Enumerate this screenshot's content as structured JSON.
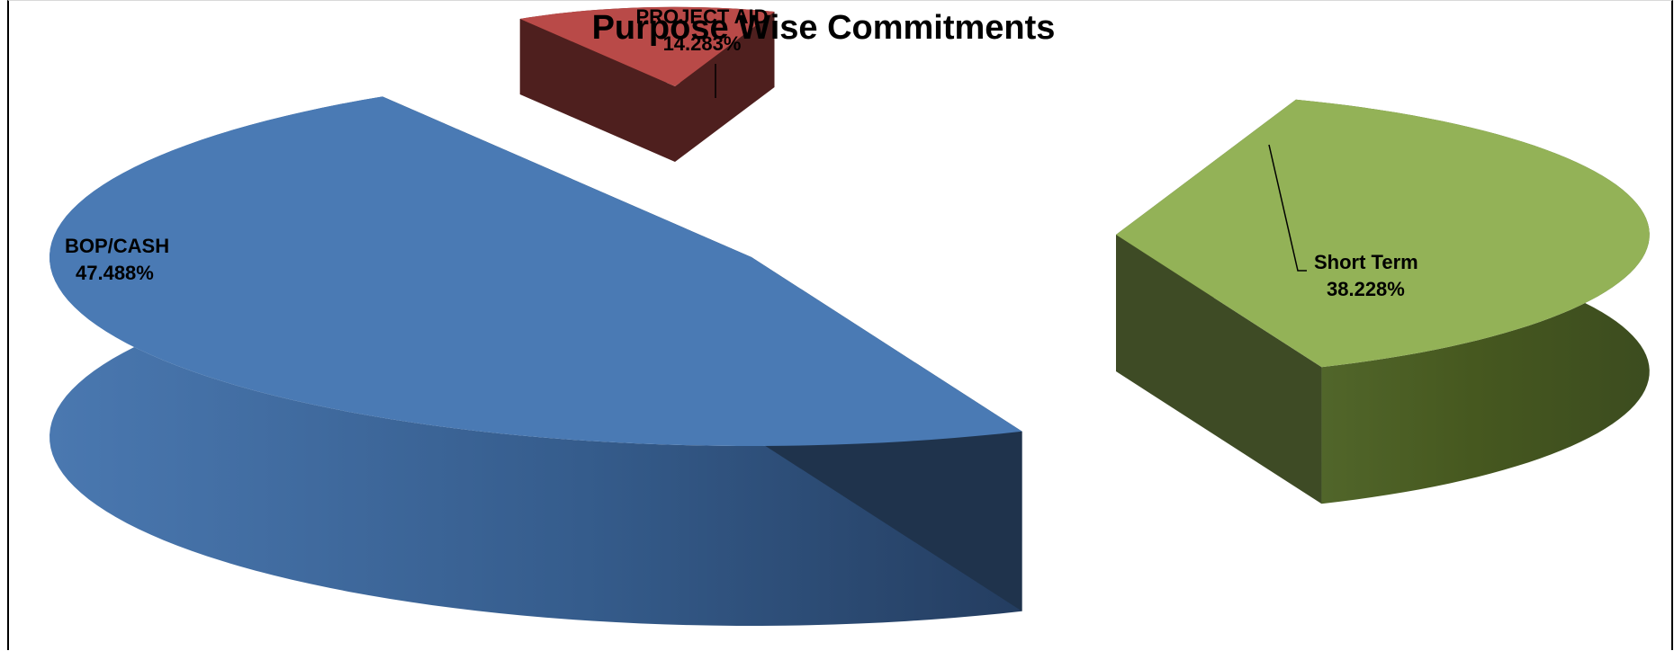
{
  "chart_data": {
    "type": "pie",
    "title": "Purpose Wise Commitments",
    "categories": [
      "BOP/CASH",
      "PROJECT AID",
      "Short Term"
    ],
    "values": [
      47.488,
      14.283,
      38.228
    ],
    "labels": [
      "47.488%",
      "14.283%",
      "38.228%"
    ],
    "colors": [
      "#4a7ab4",
      "#b94a48",
      "#93b257"
    ],
    "exploded": true,
    "three_d": true
  }
}
